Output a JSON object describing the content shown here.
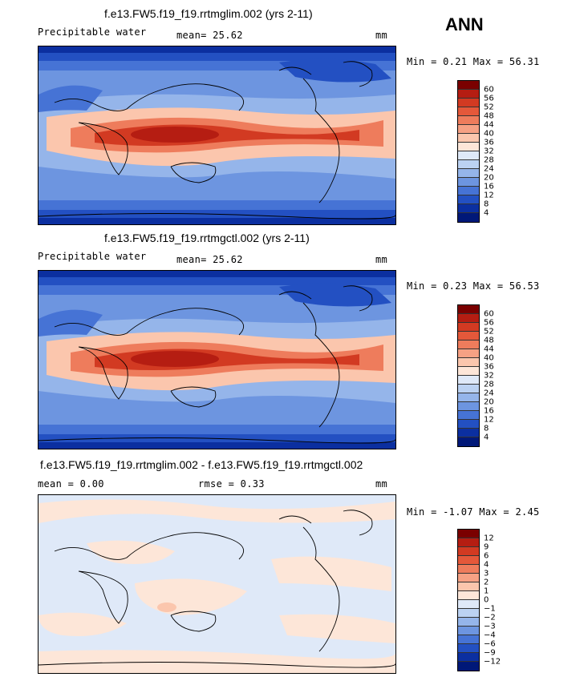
{
  "season": "ANN",
  "panels": [
    {
      "title": "f.e13.FW5.f19_f19.rrtmglim.002 (yrs 2-11)",
      "left_label": "Precipitable water",
      "center_label": "mean=  25.62",
      "units": "mm",
      "minmax": "Min =   0.21 Max =  56.31",
      "levels": [
        "60",
        "56",
        "52",
        "48",
        "44",
        "40",
        "36",
        "32",
        "28",
        "24",
        "20",
        "16",
        "12",
        "8",
        "4"
      ],
      "colors": [
        "#7a0000",
        "#b51d12",
        "#d23a22",
        "#e4583a",
        "#ee7c5c",
        "#f6a184",
        "#fbc6ad",
        "#fde6d8",
        "#dfe9f8",
        "#bcd2f2",
        "#95b5ea",
        "#6d95e0",
        "#4673d5",
        "#2350c2",
        "#0b2fa0",
        "#001878"
      ]
    },
    {
      "title": "f.e13.FW5.f19_f19.rrtmgctl.002 (yrs 2-11)",
      "left_label": "Precipitable water",
      "center_label": "mean=  25.62",
      "units": "mm",
      "minmax": "Min =   0.23 Max =  56.53",
      "levels": [
        "60",
        "56",
        "52",
        "48",
        "44",
        "40",
        "36",
        "32",
        "28",
        "24",
        "20",
        "16",
        "12",
        "8",
        "4"
      ],
      "colors": [
        "#7a0000",
        "#b51d12",
        "#d23a22",
        "#e4583a",
        "#ee7c5c",
        "#f6a184",
        "#fbc6ad",
        "#fde6d8",
        "#dfe9f8",
        "#bcd2f2",
        "#95b5ea",
        "#6d95e0",
        "#4673d5",
        "#2350c2",
        "#0b2fa0",
        "#001878"
      ]
    },
    {
      "title": "f.e13.FW5.f19_f19.rrtmglim.002 - f.e13.FW5.f19_f19.rrtmgctl.002",
      "left_label": "mean =    0.00",
      "center_label": "rmse =    0.33",
      "units": "mm",
      "minmax": "Min =  -1.07 Max =   2.45",
      "levels": [
        "12",
        "9",
        "6",
        "4",
        "3",
        "2",
        "1",
        "0",
        "−1",
        "−2",
        "−3",
        "−4",
        "−6",
        "−9",
        "−12"
      ],
      "colors": [
        "#7a0000",
        "#b51d12",
        "#d23a22",
        "#e4583a",
        "#ee7c5c",
        "#f6a184",
        "#fbc6ad",
        "#fde6d8",
        "#dfe9f8",
        "#bcd2f2",
        "#95b5ea",
        "#6d95e0",
        "#4673d5",
        "#2350c2",
        "#0b2fa0",
        "#001878"
      ]
    }
  ]
}
